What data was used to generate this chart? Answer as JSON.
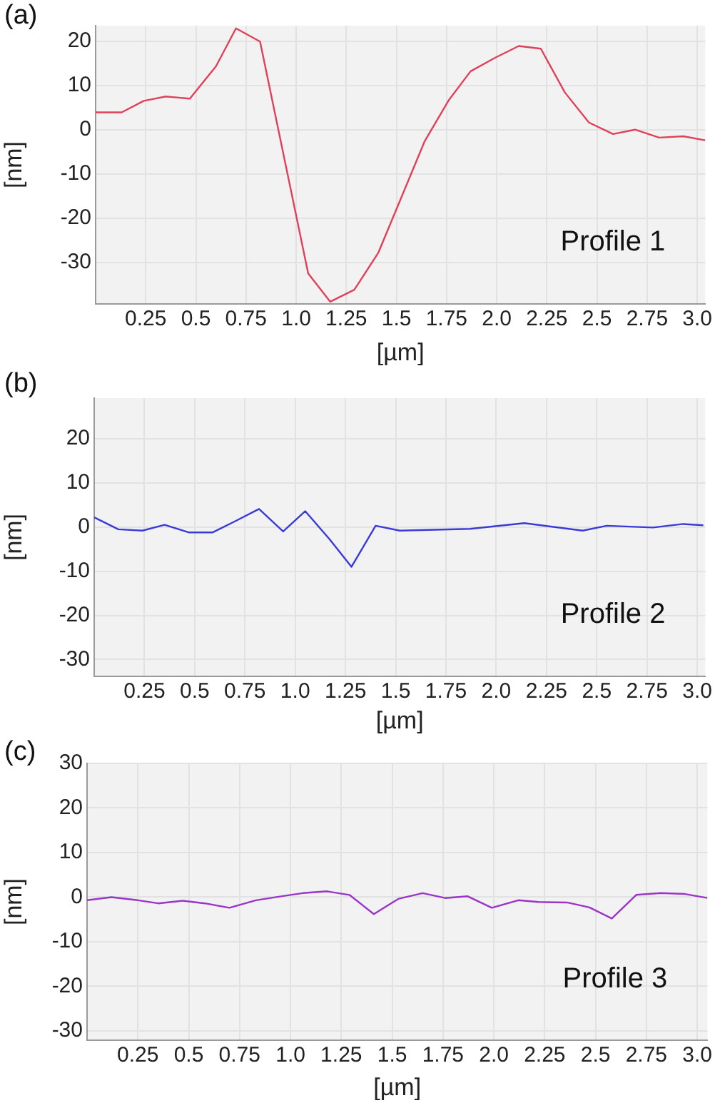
{
  "chart_data": [
    {
      "type": "line",
      "title": "(a)",
      "xlabel": "[µm]",
      "ylabel": "[nm]",
      "annotations": [
        "Profile 1"
      ],
      "grid": true,
      "xlim": [
        0,
        3.04
      ],
      "ylim": [
        -39.4,
        23.5
      ],
      "xticks": [
        0.25,
        0.5,
        0.75,
        {
          "value": 1,
          "label": "1.0"
        },
        1.25,
        1.5,
        1.75,
        {
          "value": 2,
          "label": "2.0"
        },
        2.25,
        2.5,
        2.75,
        {
          "value": 3,
          "label": "3.0"
        }
      ],
      "yticks": [
        -30,
        -20,
        -10,
        0,
        10,
        20
      ],
      "series": [
        {
          "color": "#e0405a",
          "x": [
            0,
            0.13,
            0.24,
            0.35,
            0.47,
            0.6,
            0.7,
            0.82,
            1.06,
            1.17,
            1.29,
            1.41,
            1.52,
            1.64,
            1.76,
            1.87,
            1.99,
            2.11,
            2.22,
            2.34,
            2.46,
            2.58,
            2.69,
            2.81,
            2.93,
            3.04
          ],
          "values": [
            3.9,
            3.9,
            6.5,
            7.5,
            7.0,
            14.3,
            22.9,
            19.9,
            -32.5,
            -38.9,
            -36.2,
            -27.8,
            -15.8,
            -2.7,
            6.6,
            13.2,
            16.2,
            18.9,
            18.3,
            8.4,
            1.6,
            -1.0,
            0,
            -1.8,
            -1.5,
            -2.4
          ]
        }
      ]
    },
    {
      "type": "line",
      "title": "(b)",
      "xlabel": "[µm]",
      "ylabel": "[nm]",
      "annotations": [
        "Profile 2"
      ],
      "grid": true,
      "xlim": [
        0,
        3.04
      ],
      "ylim": [
        -33.8,
        29.2
      ],
      "xticks": [
        0.25,
        0.5,
        0.75,
        {
          "value": 1,
          "label": "1.0"
        },
        1.25,
        1.5,
        1.75,
        {
          "value": 2,
          "label": "2.0"
        },
        2.25,
        2.5,
        2.75,
        {
          "value": 3,
          "label": "3.0"
        }
      ],
      "yticks": [
        -30,
        -20,
        -10,
        0,
        10,
        20
      ],
      "series": [
        {
          "color": "#3a3ad8",
          "x": [
            0,
            0.12,
            0.24,
            0.35,
            0.47,
            0.59,
            0.7,
            0.82,
            0.94,
            1.05,
            1.17,
            1.28,
            1.4,
            1.52,
            1.87,
            2.14,
            2.43,
            2.55,
            2.78,
            2.93,
            3.03
          ],
          "values": [
            2.2,
            -0.5,
            -0.8,
            0.5,
            -1.2,
            -1.2,
            1.3,
            4.1,
            -1.0,
            3.6,
            -2.7,
            -9.0,
            0.3,
            -0.8,
            -0.4,
            0.9,
            -0.8,
            0.3,
            -0.1,
            0.7,
            0.4
          ]
        }
      ]
    },
    {
      "type": "line",
      "title": "(c)",
      "xlabel": "[µm]",
      "ylabel": "[nm]",
      "annotations": [
        "Profile 3"
      ],
      "grid": true,
      "xlim": [
        0,
        3.05
      ],
      "ylim": [
        -32.1,
        30
      ],
      "xticks": [
        0.25,
        0.5,
        0.75,
        {
          "value": 1,
          "label": "1.0"
        },
        1.25,
        1.5,
        1.75,
        {
          "value": 2,
          "label": "2.0"
        },
        2.25,
        2.5,
        2.75,
        {
          "value": 3,
          "label": "3.0"
        }
      ],
      "yticks": [
        -30,
        -20,
        -10,
        0,
        10,
        20,
        30
      ],
      "series": [
        {
          "color": "#9a35c8",
          "x": [
            0,
            0.12,
            0.25,
            0.35,
            0.47,
            0.58,
            0.7,
            0.83,
            0.97,
            1.06,
            1.18,
            1.29,
            1.41,
            1.53,
            1.65,
            1.76,
            1.87,
            1.99,
            2.12,
            2.22,
            2.36,
            2.47,
            2.58,
            2.7,
            2.82,
            2.94,
            3.05
          ],
          "values": [
            -0.7,
            0,
            -0.7,
            -1.4,
            -0.8,
            -1.4,
            -2.4,
            -0.7,
            0.3,
            0.9,
            1.3,
            0.5,
            -3.8,
            -0.4,
            0.9,
            -0.2,
            0.2,
            -2.4,
            -0.7,
            -1.1,
            -1.2,
            -2.3,
            -4.8,
            0.5,
            0.9,
            0.7,
            -0.2
          ]
        }
      ]
    }
  ]
}
